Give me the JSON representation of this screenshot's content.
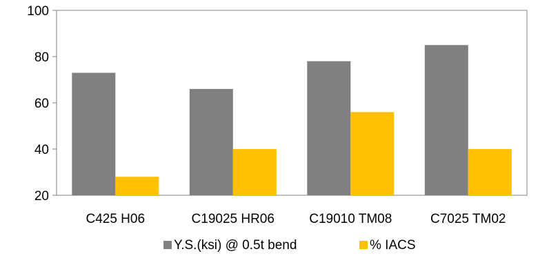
{
  "chart_data": {
    "type": "bar",
    "categories": [
      "C425 H06",
      "C19025 HR06",
      "C19010 TM08",
      "C7025 TM02"
    ],
    "series": [
      {
        "name": "Y.S.(ksi) @ 0.5t bend",
        "values": [
          73,
          66,
          78,
          85
        ],
        "color": "#808080"
      },
      {
        "name": "% IACS",
        "values": [
          28,
          40,
          56,
          40
        ],
        "color": "#FFC000"
      }
    ],
    "ylim": [
      20,
      100
    ],
    "yticks": [
      20,
      40,
      60,
      80,
      100
    ],
    "grid": false,
    "legend_position": "bottom"
  }
}
